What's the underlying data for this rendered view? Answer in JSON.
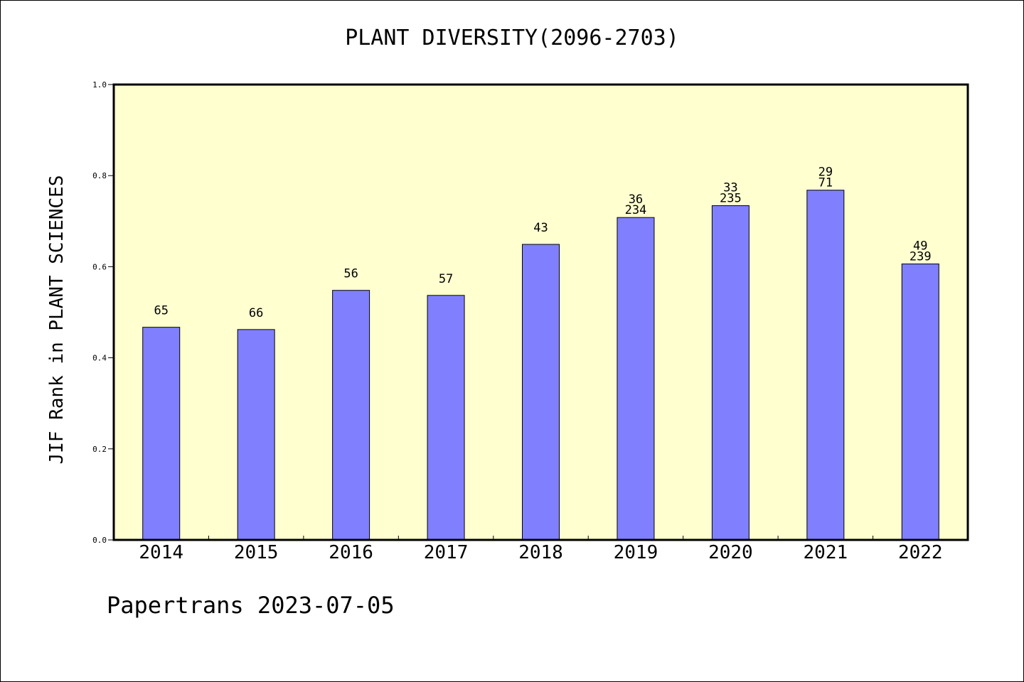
{
  "chart_data": {
    "type": "bar",
    "title": "PLANT DIVERSITY(2096-2703)",
    "xlabel": "",
    "ylabel": "JIF Rank in PLANT SCIENCES",
    "ylim": [
      0.0,
      1.0
    ],
    "yticks": [
      "0.0",
      "0.2",
      "0.4",
      "0.6",
      "0.8",
      "1.0"
    ],
    "grid": false,
    "categories": [
      "2014",
      "2015",
      "2016",
      "2017",
      "2018",
      "2019",
      "2020",
      "2021",
      "2022"
    ],
    "values": [
      0.467,
      0.462,
      0.548,
      0.537,
      0.649,
      0.708,
      0.734,
      0.768,
      0.606
    ],
    "data_labels": [
      [
        "65"
      ],
      [
        "66"
      ],
      [
        "56"
      ],
      [
        "57"
      ],
      [
        "43"
      ],
      [
        "36",
        "234"
      ],
      [
        "33",
        "235"
      ],
      [
        "29",
        "71"
      ],
      [
        "49",
        "239"
      ]
    ],
    "colors": {
      "bar": "#8080ff",
      "plot_bg": "#ffffd0",
      "axis": "#000000"
    }
  },
  "footer": "Papertrans 2023-07-05"
}
